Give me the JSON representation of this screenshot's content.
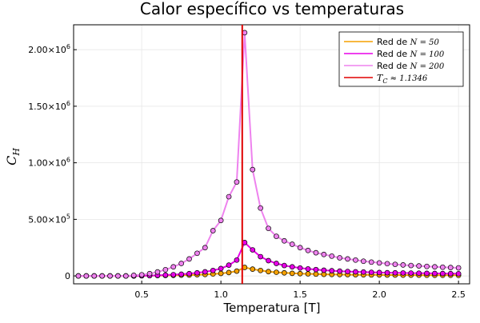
{
  "chart_data": {
    "type": "line",
    "title": "Calor específico vs temperaturas",
    "xlabel": "Temperatura [T]",
    "ylabel_base": "C",
    "ylabel_sub": "H",
    "xlim": [
      0.07,
      2.57
    ],
    "ylim": [
      -70000,
      2220000
    ],
    "x_ticks": [
      {
        "value": 0.5,
        "label": "0.5"
      },
      {
        "value": 1.0,
        "label": "1.0"
      },
      {
        "value": 1.5,
        "label": "1.5"
      },
      {
        "value": 2.0,
        "label": "2.0"
      },
      {
        "value": 2.5,
        "label": "2.5"
      }
    ],
    "y_ticks": [
      {
        "value": 0,
        "mant": "0",
        "exp": ""
      },
      {
        "value": 500000,
        "mant": "5.00×10",
        "exp": "5"
      },
      {
        "value": 1000000,
        "mant": "1.00×10",
        "exp": "6"
      },
      {
        "value": 1500000,
        "mant": "1.50×10",
        "exp": "6"
      },
      {
        "value": 2000000,
        "mant": "2.00×10",
        "exp": "6"
      }
    ],
    "grid": true,
    "legend_position": "top-right",
    "x": [
      0.1,
      0.15,
      0.2,
      0.25,
      0.3,
      0.35,
      0.4,
      0.45,
      0.5,
      0.55,
      0.6,
      0.65,
      0.7,
      0.75,
      0.8,
      0.85,
      0.9,
      0.95,
      1.0,
      1.05,
      1.1,
      1.15,
      1.2,
      1.25,
      1.3,
      1.35,
      1.4,
      1.45,
      1.5,
      1.55,
      1.6,
      1.65,
      1.7,
      1.75,
      1.8,
      1.85,
      1.9,
      1.95,
      2.0,
      2.05,
      2.1,
      2.15,
      2.2,
      2.25,
      2.3,
      2.35,
      2.4,
      2.45,
      2.5
    ],
    "series": [
      {
        "label_text": "Red de ",
        "label_math": "N = 50",
        "color": "#f5a000",
        "values": [
          0,
          0,
          0,
          0,
          0,
          0,
          0,
          0,
          1000,
          2000,
          3000,
          4000,
          5000,
          6500,
          8000,
          10000,
          13000,
          17000,
          22000,
          30000,
          42000,
          75000,
          60000,
          48000,
          38000,
          32000,
          27000,
          23000,
          20000,
          18000,
          16000,
          14000,
          13000,
          12000,
          11000,
          10000,
          9500,
          9000,
          8500,
          8000,
          7500,
          7000,
          6800,
          6500,
          6300,
          6000,
          5800,
          5600,
          5400
        ]
      },
      {
        "label_text": "Red de ",
        "label_math": "N = 100",
        "color": "#e800e8",
        "values": [
          0,
          0,
          0,
          0,
          0,
          0,
          0,
          0,
          2000,
          3000,
          5000,
          8000,
          11000,
          15000,
          20000,
          27000,
          36000,
          48000,
          65000,
          95000,
          140000,
          295000,
          230000,
          170000,
          135000,
          110000,
          92000,
          80000,
          70000,
          62000,
          56000,
          50000,
          46000,
          42000,
          39000,
          36000,
          34000,
          32000,
          30000,
          28000,
          27000,
          26000,
          25000,
          24000,
          23000,
          22000,
          21000,
          20000,
          19500
        ]
      },
      {
        "label_text": "Red de ",
        "label_math": "N = 200",
        "color": "#ee82ee",
        "values": [
          0,
          0,
          0,
          0,
          0,
          0,
          0,
          5000,
          10000,
          20000,
          35000,
          55000,
          80000,
          110000,
          150000,
          200000,
          250000,
          400000,
          490000,
          700000,
          830000,
          2150000,
          940000,
          600000,
          420000,
          350000,
          310000,
          280000,
          250000,
          225000,
          205000,
          190000,
          175000,
          160000,
          150000,
          140000,
          130000,
          122000,
          115000,
          108000,
          102000,
          97000,
          92000,
          88000,
          84000,
          80000,
          77000,
          74000,
          71000
        ]
      }
    ],
    "vline": {
      "x": 1.1346,
      "label_math": "T",
      "label_sub": "C",
      "label_rest": " ≈ 1.1346",
      "color": "#e00000"
    }
  }
}
